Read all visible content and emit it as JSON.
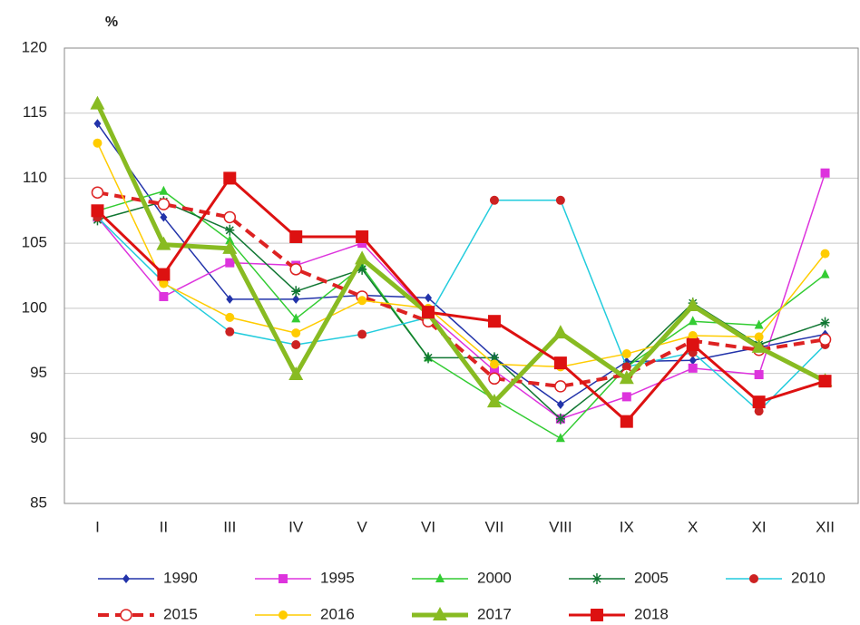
{
  "chart_data": {
    "type": "line",
    "y_label": "%",
    "categories": [
      "I",
      "II",
      "III",
      "IV",
      "V",
      "VI",
      "VII",
      "VIII",
      "IX",
      "X",
      "XI",
      "XII"
    ],
    "ylim": [
      85,
      120
    ],
    "yticks": [
      85,
      90,
      95,
      100,
      105,
      110,
      115,
      120
    ],
    "grid": true,
    "series": [
      {
        "name": "1990",
        "color": "#2233aa",
        "marker": "diamond",
        "values": [
          114.2,
          107,
          100.7,
          100.7,
          101,
          100.8,
          96.2,
          92.6,
          95.9,
          96,
          97,
          98
        ]
      },
      {
        "name": "1995",
        "color": "#dd33dd",
        "marker": "square",
        "values": [
          107,
          100.9,
          103.5,
          103.3,
          105,
          99.6,
          95.2,
          91.5,
          93.2,
          95.4,
          94.9,
          110.4
        ]
      },
      {
        "name": "2000",
        "color": "#33cc33",
        "marker": "triangle",
        "values": [
          107.5,
          109,
          105.2,
          99.2,
          103.2,
          96.2,
          93,
          90,
          95.5,
          99,
          98.7,
          102.6
        ]
      },
      {
        "name": "2005",
        "color": "#117733",
        "marker": "star",
        "values": [
          106.8,
          108.2,
          106,
          101.3,
          103,
          96.2,
          96.2,
          91.5,
          95.5,
          100.4,
          97.2,
          98.9
        ]
      },
      {
        "name": "2010",
        "color": "#22ccdd",
        "marker_color": "#cc2222",
        "marker": "circle",
        "values": [
          107,
          102,
          98.2,
          97.2,
          98,
          99.3,
          108.3,
          108.3,
          95.5,
          96.6,
          92.1,
          97.2
        ]
      },
      {
        "name": "2015",
        "color": "#dd2222",
        "marker": "open-circle",
        "dashed": true,
        "line_width": 4,
        "values": [
          108.9,
          108,
          107,
          103,
          100.9,
          99,
          94.6,
          94,
          94.9,
          97.5,
          96.8,
          97.6
        ]
      },
      {
        "name": "2016",
        "color": "#ffcc00",
        "marker": "circle",
        "values": [
          112.7,
          101.9,
          99.3,
          98.1,
          100.6,
          100,
          95.7,
          95.5,
          96.5,
          97.9,
          97.8,
          104.2
        ]
      },
      {
        "name": "2017",
        "color": "#88bb22",
        "marker": "big-triangle",
        "line_width": 5,
        "values": [
          115.7,
          104.9,
          104.6,
          94.9,
          103.8,
          99.6,
          92.8,
          98.1,
          94.6,
          100.2,
          97,
          94.4
        ]
      },
      {
        "name": "2018",
        "color": "#dd1111",
        "marker": "big-square",
        "line_width": 3,
        "values": [
          107.5,
          102.6,
          110,
          105.5,
          105.5,
          99.7,
          99,
          95.8,
          91.3,
          97.2,
          92.8,
          94.4
        ]
      }
    ]
  }
}
